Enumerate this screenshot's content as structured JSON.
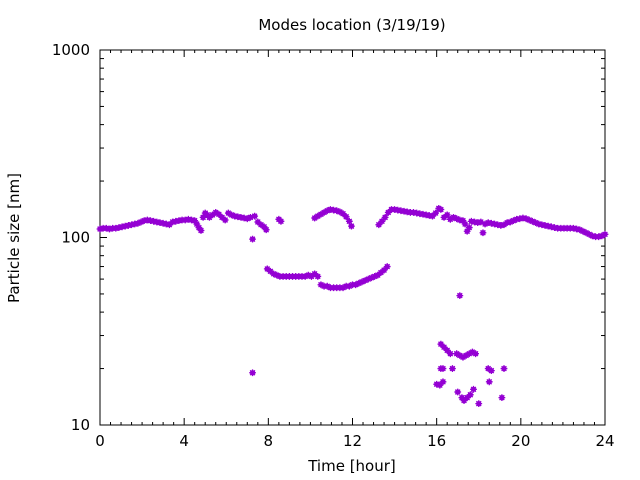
{
  "chart_data": {
    "type": "scatter",
    "title": "Modes location (3/19/19)",
    "xlabel": "Time [hour]",
    "ylabel": "Particle size [nm]",
    "xlim": [
      0,
      24
    ],
    "ylim": [
      10,
      1000
    ],
    "yscale": "log",
    "grid": false,
    "legend": "none",
    "marker_color": "#9400D3",
    "x_ticks": [
      0,
      4,
      8,
      12,
      16,
      20,
      24
    ],
    "y_ticks": [
      10,
      100,
      1000
    ],
    "series": [
      {
        "points": [
          [
            0.0,
            111
          ],
          [
            0.15,
            112
          ],
          [
            0.3,
            112
          ],
          [
            0.45,
            111
          ],
          [
            0.6,
            112
          ],
          [
            0.75,
            112
          ],
          [
            0.9,
            113
          ],
          [
            1.05,
            114
          ],
          [
            1.2,
            115
          ],
          [
            1.35,
            116
          ],
          [
            1.5,
            117
          ],
          [
            1.65,
            118
          ],
          [
            1.8,
            119
          ],
          [
            1.95,
            121
          ],
          [
            2.1,
            123
          ],
          [
            2.25,
            124
          ],
          [
            2.4,
            123
          ],
          [
            2.55,
            122
          ],
          [
            2.7,
            121
          ],
          [
            2.85,
            120
          ],
          [
            3.0,
            119
          ],
          [
            3.15,
            118
          ],
          [
            3.3,
            117
          ],
          [
            3.45,
            121
          ],
          [
            3.6,
            122
          ],
          [
            3.75,
            123
          ],
          [
            3.9,
            124
          ],
          [
            4.05,
            124
          ],
          [
            4.2,
            125
          ],
          [
            4.35,
            124
          ],
          [
            4.5,
            123
          ],
          [
            4.6,
            118
          ],
          [
            4.7,
            113
          ],
          [
            4.8,
            109
          ],
          [
            4.9,
            128
          ],
          [
            5.0,
            135
          ],
          [
            5.1,
            132
          ],
          [
            5.2,
            128
          ],
          [
            5.35,
            132
          ],
          [
            5.5,
            136
          ],
          [
            5.65,
            133
          ],
          [
            5.8,
            128
          ],
          [
            5.95,
            124
          ],
          [
            6.1,
            135
          ],
          [
            6.25,
            132
          ],
          [
            6.4,
            130
          ],
          [
            6.55,
            129
          ],
          [
            6.7,
            128
          ],
          [
            6.85,
            127
          ],
          [
            7.0,
            126
          ],
          [
            7.15,
            128
          ],
          [
            7.25,
            98
          ],
          [
            7.35,
            130
          ],
          [
            7.5,
            121
          ],
          [
            7.65,
            117
          ],
          [
            7.8,
            114
          ],
          [
            7.9,
            110
          ],
          [
            8.5,
            125
          ],
          [
            8.6,
            122
          ],
          [
            10.2,
            127
          ],
          [
            10.35,
            130
          ],
          [
            10.5,
            133
          ],
          [
            10.65,
            136
          ],
          [
            10.8,
            139
          ],
          [
            10.95,
            141
          ],
          [
            11.1,
            140
          ],
          [
            11.25,
            139
          ],
          [
            11.4,
            137
          ],
          [
            11.55,
            134
          ],
          [
            11.7,
            129
          ],
          [
            11.85,
            122
          ],
          [
            11.95,
            115
          ],
          [
            13.25,
            117
          ],
          [
            13.4,
            122
          ],
          [
            13.55,
            128
          ],
          [
            13.7,
            136
          ],
          [
            13.85,
            141
          ],
          [
            14.0,
            141
          ],
          [
            14.15,
            140
          ],
          [
            14.3,
            139
          ],
          [
            14.45,
            138
          ],
          [
            14.6,
            137
          ],
          [
            14.75,
            136
          ],
          [
            14.9,
            136
          ],
          [
            15.05,
            135
          ],
          [
            15.2,
            134
          ],
          [
            15.35,
            133
          ],
          [
            15.5,
            132
          ],
          [
            15.65,
            131
          ],
          [
            15.8,
            130
          ],
          [
            15.95,
            135
          ],
          [
            16.1,
            143
          ],
          [
            16.2,
            141
          ],
          [
            16.35,
            128
          ],
          [
            16.5,
            132
          ],
          [
            16.65,
            125
          ],
          [
            16.8,
            128
          ],
          [
            16.95,
            126
          ],
          [
            17.1,
            124
          ],
          [
            17.25,
            123
          ],
          [
            17.35,
            118
          ],
          [
            17.45,
            108
          ],
          [
            17.55,
            113
          ],
          [
            17.65,
            122
          ],
          [
            17.8,
            121
          ],
          [
            17.95,
            120
          ],
          [
            18.1,
            121
          ],
          [
            18.2,
            106
          ],
          [
            18.3,
            118
          ],
          [
            18.45,
            120
          ],
          [
            18.6,
            119
          ],
          [
            18.75,
            118
          ],
          [
            18.9,
            117
          ],
          [
            19.05,
            116
          ],
          [
            19.2,
            117
          ],
          [
            19.35,
            120
          ],
          [
            19.5,
            121
          ],
          [
            19.65,
            123
          ],
          [
            19.8,
            125
          ],
          [
            19.95,
            126
          ],
          [
            20.1,
            127
          ],
          [
            20.25,
            126
          ],
          [
            20.4,
            124
          ],
          [
            20.55,
            122
          ],
          [
            20.7,
            120
          ],
          [
            20.85,
            118
          ],
          [
            21.0,
            117
          ],
          [
            21.15,
            116
          ],
          [
            21.3,
            115
          ],
          [
            21.45,
            114
          ],
          [
            21.6,
            113
          ],
          [
            21.75,
            112
          ],
          [
            21.9,
            112
          ],
          [
            22.05,
            112
          ],
          [
            22.2,
            112
          ],
          [
            22.35,
            112
          ],
          [
            22.5,
            112
          ],
          [
            22.65,
            111
          ],
          [
            22.8,
            110
          ],
          [
            22.95,
            108
          ],
          [
            23.1,
            106
          ],
          [
            23.25,
            104
          ],
          [
            23.4,
            102
          ],
          [
            23.55,
            101
          ],
          [
            23.7,
            101
          ],
          [
            23.85,
            102
          ],
          [
            24.0,
            104
          ],
          [
            7.95,
            68
          ],
          [
            8.1,
            66
          ],
          [
            8.25,
            64
          ],
          [
            8.4,
            63
          ],
          [
            8.55,
            62
          ],
          [
            8.7,
            62
          ],
          [
            8.85,
            62
          ],
          [
            9.0,
            62
          ],
          [
            9.15,
            62
          ],
          [
            9.3,
            62
          ],
          [
            9.45,
            62
          ],
          [
            9.6,
            62
          ],
          [
            9.75,
            62
          ],
          [
            9.9,
            63
          ],
          [
            10.05,
            62
          ],
          [
            10.2,
            64
          ],
          [
            10.35,
            62
          ],
          [
            10.5,
            56
          ],
          [
            10.65,
            55
          ],
          [
            10.8,
            55
          ],
          [
            10.95,
            54
          ],
          [
            11.1,
            54
          ],
          [
            11.25,
            54
          ],
          [
            11.4,
            54
          ],
          [
            11.55,
            54
          ],
          [
            11.7,
            55
          ],
          [
            11.85,
            55
          ],
          [
            12.0,
            56
          ],
          [
            12.15,
            56
          ],
          [
            12.3,
            57
          ],
          [
            12.45,
            58
          ],
          [
            12.6,
            59
          ],
          [
            12.75,
            60
          ],
          [
            12.9,
            61
          ],
          [
            13.05,
            62
          ],
          [
            13.2,
            63
          ],
          [
            13.35,
            65
          ],
          [
            13.5,
            67
          ],
          [
            13.65,
            70
          ],
          [
            7.25,
            19
          ],
          [
            17.1,
            49
          ],
          [
            16.2,
            27
          ],
          [
            16.35,
            26
          ],
          [
            16.5,
            25
          ],
          [
            16.65,
            24
          ],
          [
            16.95,
            24
          ],
          [
            17.1,
            23.5
          ],
          [
            17.25,
            23
          ],
          [
            17.4,
            23.5
          ],
          [
            17.55,
            24
          ],
          [
            17.7,
            24.5
          ],
          [
            17.85,
            24
          ],
          [
            16.75,
            20
          ],
          [
            16.2,
            20
          ],
          [
            16.3,
            20
          ],
          [
            16.0,
            16.5
          ],
          [
            16.15,
            16.3
          ],
          [
            16.3,
            17
          ],
          [
            17.0,
            15
          ],
          [
            17.2,
            14
          ],
          [
            17.3,
            13.5
          ],
          [
            17.45,
            14
          ],
          [
            17.6,
            14.5
          ],
          [
            17.75,
            15.5
          ],
          [
            18.0,
            13
          ],
          [
            18.5,
            17
          ],
          [
            18.45,
            20
          ],
          [
            18.6,
            19.5
          ],
          [
            19.2,
            20
          ],
          [
            19.1,
            14
          ]
        ]
      }
    ]
  }
}
